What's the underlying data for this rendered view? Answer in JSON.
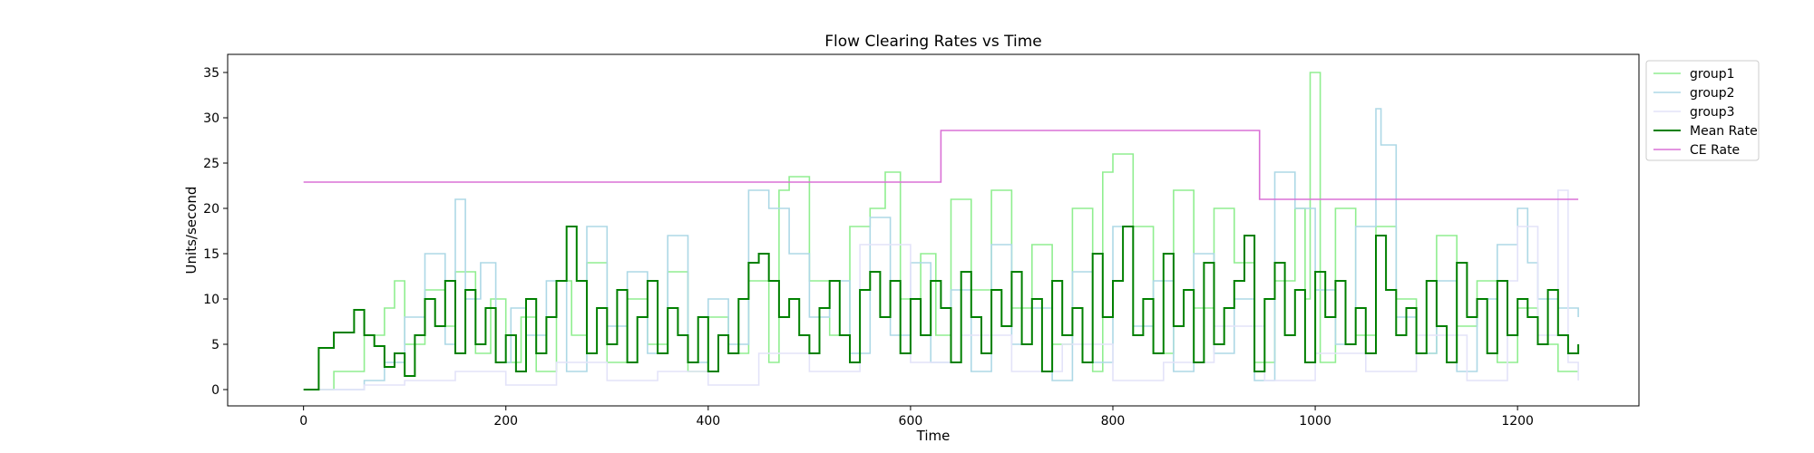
{
  "chart_data": {
    "type": "line",
    "title": "Flow Clearing Rates vs Time",
    "xlabel": "Time",
    "ylabel": "Units/second",
    "xlim": [
      -75,
      1320
    ],
    "ylim": [
      -1.8,
      37
    ],
    "xticks": [
      0,
      200,
      400,
      600,
      800,
      1000,
      1200
    ],
    "yticks": [
      0,
      5,
      10,
      15,
      20,
      25,
      30,
      35
    ],
    "grid": false,
    "legend_position": "outside-top-right",
    "series": [
      {
        "name": "group1",
        "color": "#90ee90",
        "step": true,
        "x": [
          0,
          30,
          60,
          80,
          90,
          100,
          120,
          140,
          150,
          170,
          185,
          200,
          215,
          230,
          250,
          265,
          280,
          300,
          320,
          340,
          360,
          380,
          400,
          420,
          440,
          460,
          470,
          480,
          500,
          520,
          540,
          560,
          575,
          590,
          610,
          625,
          640,
          660,
          680,
          700,
          720,
          740,
          760,
          780,
          790,
          800,
          820,
          840,
          860,
          880,
          900,
          920,
          940,
          960,
          980,
          990,
          995,
          1005,
          1020,
          1040,
          1060,
          1080,
          1100,
          1120,
          1140,
          1160,
          1180,
          1200,
          1220,
          1240,
          1260
        ],
        "y": [
          0,
          2,
          6,
          9,
          12,
          5,
          11,
          7,
          13,
          4,
          10,
          3,
          8,
          2,
          12,
          6,
          14,
          3,
          10,
          5,
          13,
          2,
          8,
          4,
          12,
          3,
          22,
          23.5,
          12,
          6,
          18,
          20,
          24,
          10,
          15,
          6,
          21,
          11,
          22,
          9,
          16,
          5,
          20,
          2,
          24,
          26,
          18,
          4,
          22,
          9,
          20,
          14,
          3,
          12,
          20,
          10,
          35,
          3,
          20,
          6,
          18,
          10,
          4,
          17,
          7,
          12,
          3,
          9,
          5,
          2,
          2
        ]
      },
      {
        "name": "group2",
        "color": "#add8e6",
        "step": true,
        "x": [
          0,
          60,
          80,
          100,
          120,
          140,
          150,
          160,
          175,
          190,
          205,
          220,
          240,
          260,
          280,
          300,
          320,
          340,
          360,
          380,
          400,
          420,
          440,
          460,
          480,
          500,
          520,
          540,
          560,
          580,
          600,
          620,
          640,
          660,
          680,
          700,
          720,
          740,
          760,
          780,
          800,
          820,
          840,
          860,
          880,
          900,
          920,
          940,
          960,
          980,
          1000,
          1020,
          1040,
          1060,
          1065,
          1080,
          1100,
          1120,
          1140,
          1160,
          1180,
          1200,
          1210,
          1220,
          1240,
          1260
        ],
        "y": [
          0,
          1,
          3,
          8,
          15,
          5,
          21,
          10,
          14,
          3,
          9,
          6,
          12,
          2,
          18,
          7,
          13,
          4,
          17,
          3,
          10,
          5,
          22,
          20,
          15,
          8,
          12,
          4,
          19,
          6,
          14,
          3,
          11,
          2,
          16,
          5,
          9,
          1,
          13,
          3,
          18,
          7,
          12,
          2,
          15,
          4,
          10,
          1,
          24,
          20,
          11,
          5,
          18,
          31,
          27,
          8,
          4,
          12,
          2,
          10,
          16,
          20,
          14,
          10,
          9,
          8
        ]
      },
      {
        "name": "group3",
        "color": "#e3e3f9",
        "step": true,
        "x": [
          0,
          60,
          100,
          150,
          200,
          250,
          300,
          350,
          400,
          450,
          500,
          550,
          600,
          650,
          700,
          750,
          800,
          850,
          900,
          950,
          1000,
          1050,
          1100,
          1150,
          1190,
          1200,
          1220,
          1240,
          1250,
          1260
        ],
        "y": [
          0,
          0.5,
          1,
          2,
          0.5,
          3,
          1,
          2,
          0.5,
          4,
          2,
          16,
          3,
          6,
          2,
          5,
          1,
          3,
          7,
          1,
          4,
          2,
          6,
          1,
          12,
          18,
          6,
          22,
          3,
          1
        ]
      },
      {
        "name": "Mean Rate",
        "color": "#008000",
        "step": true,
        "x": [
          0,
          15,
          30,
          50,
          60,
          70,
          80,
          90,
          100,
          110,
          120,
          130,
          140,
          150,
          160,
          170,
          180,
          190,
          200,
          210,
          220,
          230,
          240,
          250,
          260,
          270,
          280,
          290,
          300,
          310,
          320,
          330,
          340,
          350,
          360,
          370,
          380,
          390,
          400,
          410,
          420,
          430,
          440,
          450,
          460,
          470,
          480,
          490,
          500,
          510,
          520,
          530,
          540,
          550,
          560,
          570,
          580,
          590,
          600,
          610,
          620,
          630,
          640,
          650,
          660,
          670,
          680,
          690,
          700,
          710,
          720,
          730,
          740,
          750,
          760,
          770,
          780,
          790,
          800,
          810,
          820,
          830,
          840,
          850,
          860,
          870,
          880,
          890,
          900,
          910,
          920,
          930,
          940,
          950,
          960,
          970,
          980,
          990,
          1000,
          1010,
          1020,
          1030,
          1040,
          1050,
          1060,
          1070,
          1080,
          1090,
          1100,
          1110,
          1120,
          1130,
          1140,
          1150,
          1160,
          1170,
          1180,
          1190,
          1200,
          1210,
          1220,
          1230,
          1240,
          1250,
          1260
        ],
        "y": [
          0,
          4.6,
          6.3,
          8.8,
          6,
          4.8,
          2.5,
          4,
          1.5,
          6,
          10,
          7,
          12,
          4,
          11,
          5,
          9,
          3,
          6,
          2,
          10,
          4,
          8,
          12,
          18,
          12,
          4,
          9,
          5,
          11,
          3,
          8,
          12,
          4,
          9,
          6,
          3,
          8,
          2,
          6,
          4,
          10,
          14,
          15,
          12,
          8,
          10,
          6,
          4,
          9,
          12,
          6,
          3,
          11,
          13,
          8,
          12,
          4,
          10,
          6,
          12,
          9,
          3,
          13,
          8,
          4,
          11,
          7,
          13,
          5,
          10,
          2,
          12,
          6,
          9,
          3,
          15,
          8,
          12,
          18,
          6,
          10,
          4,
          15,
          7,
          11,
          3,
          14,
          5,
          9,
          12,
          17,
          2,
          10,
          14,
          6,
          11,
          3,
          13,
          8,
          12,
          5,
          9,
          4,
          17,
          11,
          6,
          9,
          4,
          12,
          7,
          3,
          14,
          8,
          10,
          4,
          12,
          6,
          10,
          8,
          5,
          11,
          6,
          4,
          5
        ]
      },
      {
        "name": "CE Rate",
        "color": "#da70d6",
        "step": true,
        "x": [
          0,
          630,
          945,
          1260
        ],
        "y": [
          22.9,
          28.6,
          21.0,
          21.0
        ]
      }
    ]
  }
}
